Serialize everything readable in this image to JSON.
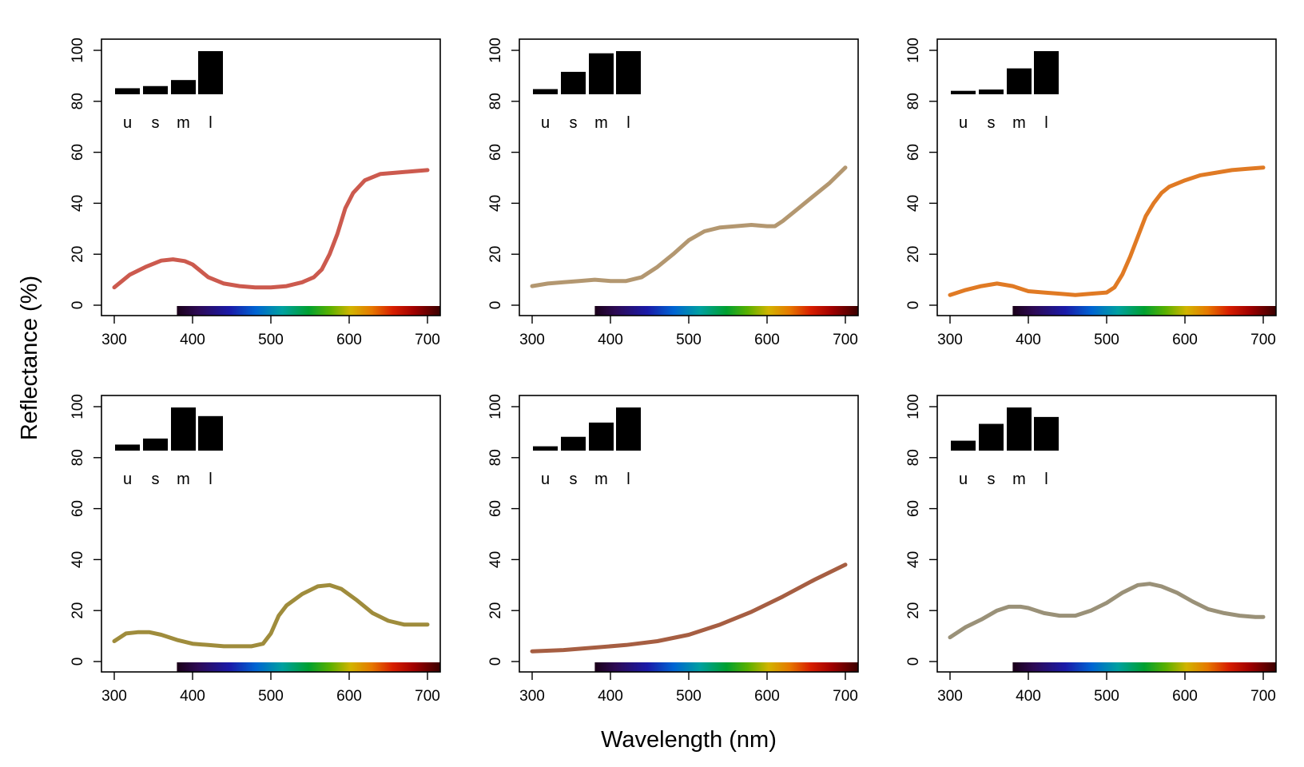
{
  "figure": {
    "xlabel": "Wavelength (nm)",
    "ylabel": "Reflectance (%)"
  },
  "chart_data": [
    {
      "type": "line",
      "xlim": [
        300,
        700
      ],
      "ylim": [
        0,
        100
      ],
      "x_ticks": [
        300,
        400,
        500,
        600,
        700
      ],
      "y_ticks": [
        0,
        20,
        40,
        60,
        80,
        100
      ],
      "line_color": "#cc5a4e",
      "x": [
        300,
        320,
        340,
        360,
        375,
        390,
        400,
        420,
        440,
        460,
        480,
        500,
        520,
        540,
        555,
        565,
        575,
        585,
        595,
        605,
        620,
        640,
        660,
        680,
        700
      ],
      "y": [
        7,
        12,
        15,
        17.5,
        18,
        17.3,
        16,
        11,
        8.5,
        7.5,
        7,
        7,
        7.5,
        9,
        11,
        14,
        20,
        28,
        38,
        44,
        49,
        51.5,
        52,
        52.5,
        53
      ],
      "cone_bars": {
        "labels": [
          "u",
          "s",
          "m",
          "l"
        ],
        "values": [
          0.14,
          0.19,
          0.33,
          1.0
        ]
      }
    },
    {
      "type": "line",
      "xlim": [
        300,
        700
      ],
      "ylim": [
        0,
        100
      ],
      "x_ticks": [
        300,
        400,
        500,
        600,
        700
      ],
      "y_ticks": [
        0,
        20,
        40,
        60,
        80,
        100
      ],
      "line_color": "#b39770",
      "x": [
        300,
        320,
        340,
        360,
        380,
        400,
        420,
        440,
        460,
        480,
        500,
        520,
        540,
        560,
        580,
        600,
        610,
        620,
        640,
        660,
        680,
        700
      ],
      "y": [
        7.5,
        8.5,
        9,
        9.5,
        10,
        9.5,
        9.5,
        11,
        15,
        20,
        25.5,
        29,
        30.5,
        31,
        31.5,
        31,
        31,
        33,
        38,
        43,
        48,
        54
      ],
      "cone_bars": {
        "labels": [
          "u",
          "s",
          "m",
          "l"
        ],
        "values": [
          0.12,
          0.52,
          0.95,
          1.0
        ]
      }
    },
    {
      "type": "line",
      "xlim": [
        300,
        700
      ],
      "ylim": [
        0,
        100
      ],
      "x_ticks": [
        300,
        400,
        500,
        600,
        700
      ],
      "y_ticks": [
        0,
        20,
        40,
        60,
        80,
        100
      ],
      "line_color": "#e07a24",
      "x": [
        300,
        320,
        340,
        360,
        380,
        400,
        420,
        440,
        460,
        480,
        500,
        510,
        520,
        530,
        540,
        550,
        560,
        570,
        580,
        600,
        620,
        640,
        660,
        680,
        700
      ],
      "y": [
        4,
        6,
        7.5,
        8.5,
        7.5,
        5.5,
        5,
        4.5,
        4,
        4.5,
        5,
        7,
        12,
        19,
        27,
        35,
        40,
        44,
        46.5,
        49,
        51,
        52,
        53,
        53.5,
        54
      ],
      "cone_bars": {
        "labels": [
          "u",
          "s",
          "m",
          "l"
        ],
        "values": [
          0.08,
          0.11,
          0.6,
          1.0
        ]
      }
    },
    {
      "type": "line",
      "xlim": [
        300,
        700
      ],
      "ylim": [
        0,
        100
      ],
      "x_ticks": [
        300,
        400,
        500,
        600,
        700
      ],
      "y_ticks": [
        0,
        20,
        40,
        60,
        80,
        100
      ],
      "line_color": "#9f8c3c",
      "x": [
        300,
        315,
        330,
        345,
        360,
        380,
        400,
        420,
        440,
        460,
        475,
        490,
        500,
        510,
        520,
        540,
        560,
        575,
        590,
        610,
        630,
        650,
        670,
        690,
        700
      ],
      "y": [
        8,
        11,
        11.5,
        11.5,
        10.5,
        8.5,
        7,
        6.5,
        6,
        6,
        6,
        7,
        11,
        18,
        22,
        26.5,
        29.5,
        30,
        28.5,
        24,
        19,
        16,
        14.5,
        14.5,
        14.5
      ],
      "cone_bars": {
        "labels": [
          "u",
          "s",
          "m",
          "l"
        ],
        "values": [
          0.14,
          0.28,
          1.0,
          0.8
        ]
      }
    },
    {
      "type": "line",
      "xlim": [
        300,
        700
      ],
      "ylim": [
        0,
        100
      ],
      "x_ticks": [
        300,
        400,
        500,
        600,
        700
      ],
      "y_ticks": [
        0,
        20,
        40,
        60,
        80,
        100
      ],
      "line_color": "#a65e42",
      "x": [
        300,
        340,
        380,
        420,
        460,
        500,
        540,
        580,
        620,
        660,
        700
      ],
      "y": [
        4,
        4.5,
        5.5,
        6.5,
        8,
        10.5,
        14.5,
        19.5,
        25.5,
        32,
        38
      ],
      "cone_bars": {
        "labels": [
          "u",
          "s",
          "m",
          "l"
        ],
        "values": [
          0.1,
          0.32,
          0.65,
          1.0
        ]
      }
    },
    {
      "type": "line",
      "xlim": [
        300,
        700
      ],
      "ylim": [
        0,
        100
      ],
      "x_ticks": [
        300,
        400,
        500,
        600,
        700
      ],
      "y_ticks": [
        0,
        20,
        40,
        60,
        80,
        100
      ],
      "line_color": "#9a9178",
      "x": [
        300,
        320,
        340,
        360,
        375,
        390,
        400,
        420,
        440,
        460,
        480,
        500,
        520,
        540,
        555,
        570,
        590,
        610,
        630,
        650,
        670,
        690,
        700
      ],
      "y": [
        9.5,
        13.5,
        16.5,
        20,
        21.5,
        21.5,
        21,
        19,
        18,
        18,
        20,
        23,
        27,
        30,
        30.5,
        29.5,
        27,
        23.5,
        20.5,
        19,
        18,
        17.5,
        17.5
      ],
      "cone_bars": {
        "labels": [
          "u",
          "s",
          "m",
          "l"
        ],
        "values": [
          0.23,
          0.62,
          1.0,
          0.78
        ]
      }
    }
  ]
}
